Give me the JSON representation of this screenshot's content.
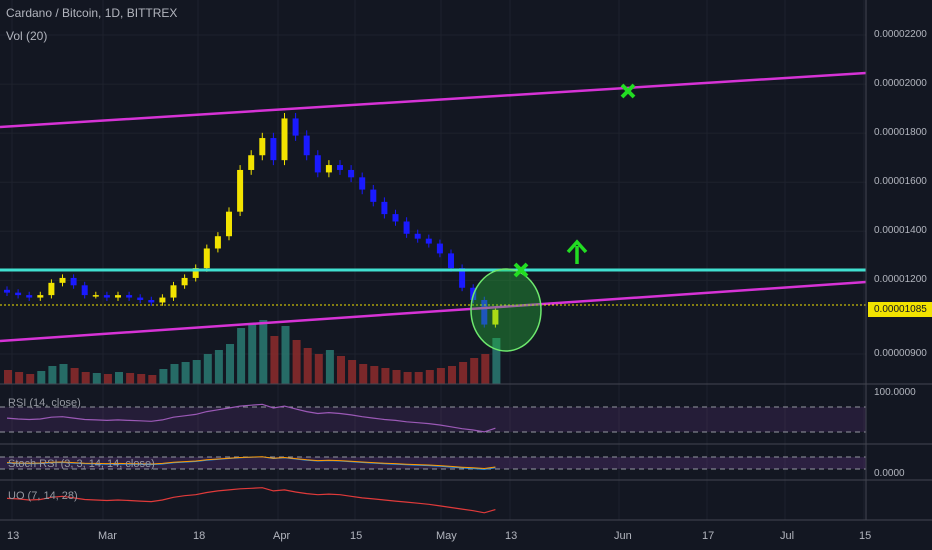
{
  "header": {
    "symbol_line": "Cardano / Bitcoin, 1D, BITTREX",
    "volume_label": "Vol (20)"
  },
  "indicators": {
    "rsi_label": "RSI (14, close)",
    "stoch_label": "Stoch RSI (3, 3, 14, 14, close)",
    "uo_label": "UO (7, 14, 28)"
  },
  "colors": {
    "background": "#131722",
    "up_candle": "#f2e300",
    "down_candle": "#1a1aff",
    "resistance": "#40e0d0",
    "channel": "#d633d6",
    "marker": "#22dd22",
    "last_price": "#f2e300"
  },
  "annotations": {
    "x_marks": 2,
    "arrow": "up-arrow-icon",
    "ellipse": "highlight-ellipse",
    "last_price_badge": "0.00001085"
  },
  "chart_data": {
    "type": "candlestick",
    "title": "Cardano / Bitcoin, 1D, BITTREX",
    "y_axis_ticks": [
      "0.00002200",
      "0.00002000",
      "0.00001800",
      "0.00001600",
      "0.00001400",
      "0.00001200",
      "0.00000900"
    ],
    "x_axis_ticks": [
      "13",
      "Mar",
      "18",
      "Apr",
      "15",
      "May",
      "13",
      "Jun",
      "17",
      "Jul",
      "15"
    ],
    "ylim": [
      8.5e-06,
      2.35e-05
    ],
    "last_price": "0.00001085",
    "horizontal_resistance": 1.22e-05,
    "price_path": [
      1.15e-05,
      1.14e-05,
      1.13e-05,
      1.14e-05,
      1.19e-05,
      1.21e-05,
      1.18e-05,
      1.14e-05,
      1.14e-05,
      1.13e-05,
      1.14e-05,
      1.13e-05,
      1.12e-05,
      1.11e-05,
      1.13e-05,
      1.18e-05,
      1.21e-05,
      1.25e-05,
      1.33e-05,
      1.38e-05,
      1.48e-05,
      1.65e-05,
      1.71e-05,
      1.78e-05,
      1.69e-05,
      1.86e-05,
      1.79e-05,
      1.71e-05,
      1.64e-05,
      1.67e-05,
      1.65e-05,
      1.62e-05,
      1.57e-05,
      1.52e-05,
      1.47e-05,
      1.44e-05,
      1.39e-05,
      1.37e-05,
      1.35e-05,
      1.31e-05,
      1.25e-05,
      1.17e-05,
      1.12e-05,
      1.02e-05,
      1.08e-05
    ],
    "series": [
      {
        "name": "RSI (14, close)",
        "range": [
          0,
          100
        ],
        "band": [
          30,
          70
        ],
        "values": [
          52,
          50,
          49,
          50,
          54,
          55,
          52,
          49,
          48,
          47,
          48,
          47,
          46,
          45,
          48,
          54,
          57,
          60,
          66,
          70,
          74,
          78,
          80,
          82,
          74,
          78,
          72,
          66,
          62,
          64,
          62,
          59,
          55,
          52,
          49,
          47,
          44,
          42,
          40,
          37,
          33,
          29,
          26,
          22,
          30
        ]
      },
      {
        "name": "UO (7, 14, 28)",
        "values": [
          48,
          47,
          45,
          46,
          50,
          52,
          49,
          46,
          45,
          44,
          45,
          44,
          43,
          42,
          45,
          50,
          53,
          55,
          59,
          62,
          64,
          66,
          67,
          68,
          62,
          64,
          60,
          57,
          55,
          56,
          55,
          52,
          49,
          47,
          45,
          43,
          41,
          39,
          37,
          34,
          31,
          28,
          25,
          21,
          27
        ]
      }
    ],
    "grid": true,
    "legend": "none"
  }
}
